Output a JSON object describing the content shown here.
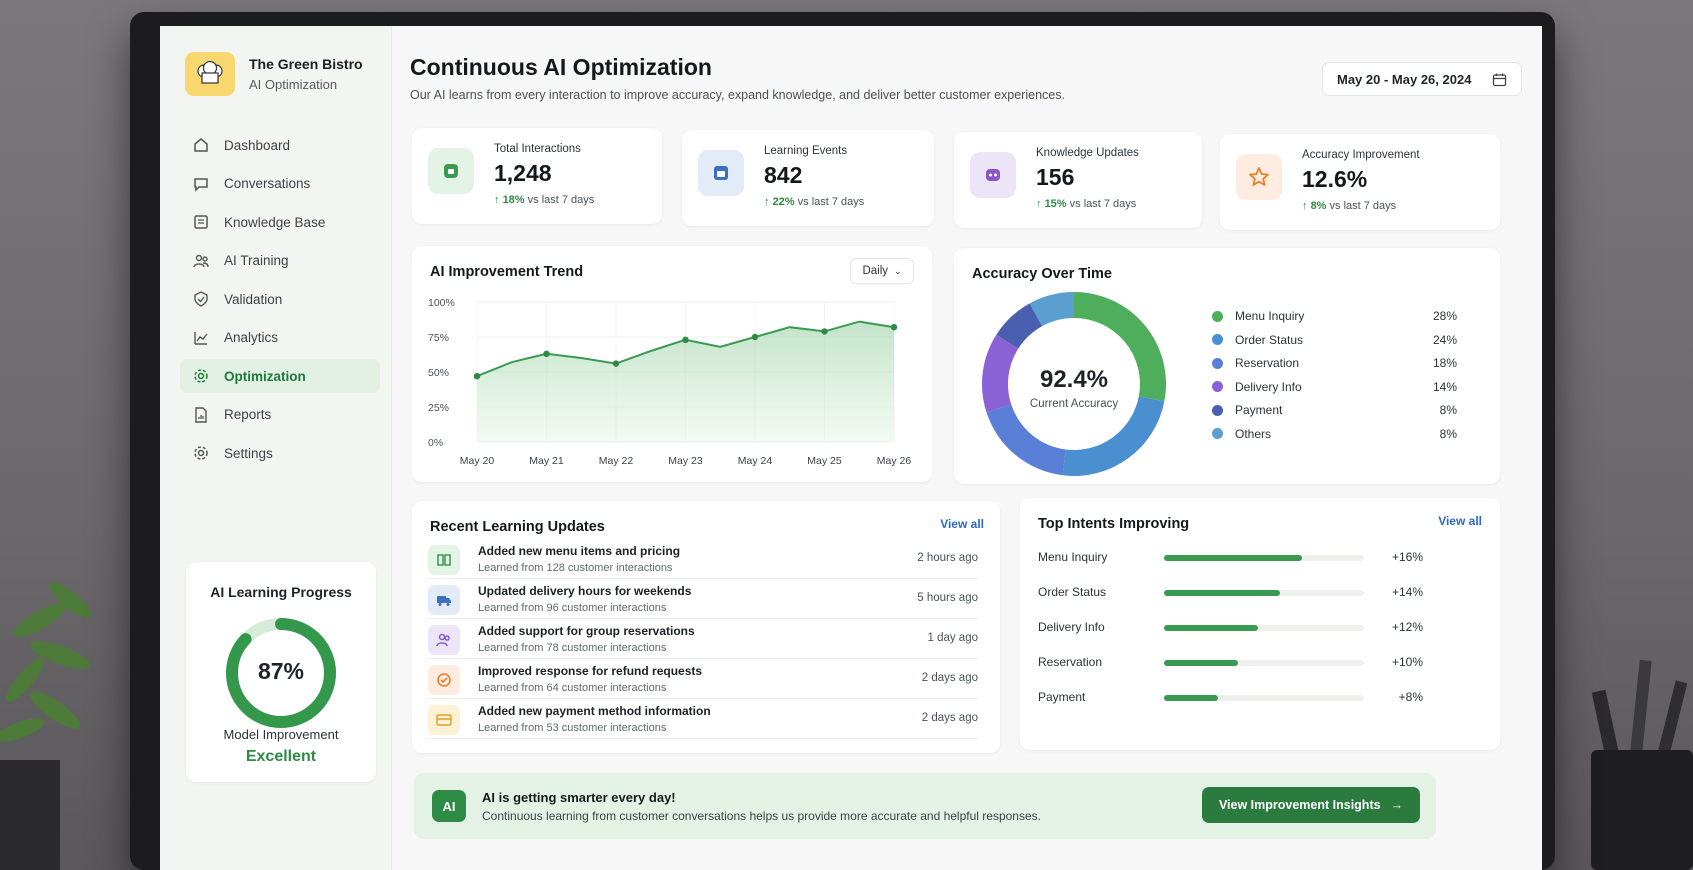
{
  "brand": {
    "name": "The Green Bistro",
    "subtitle": "AI Optimization"
  },
  "nav": [
    {
      "label": "Dashboard",
      "icon": "home-icon"
    },
    {
      "label": "Conversations",
      "icon": "chat-icon"
    },
    {
      "label": "Knowledge Base",
      "icon": "book-icon"
    },
    {
      "label": "AI Training",
      "icon": "users-icon"
    },
    {
      "label": "Validation",
      "icon": "check-shield-icon"
    },
    {
      "label": "Analytics",
      "icon": "chart-icon"
    },
    {
      "label": "Optimization",
      "icon": "gear-icon",
      "active": true
    },
    {
      "label": "Reports",
      "icon": "document-icon"
    },
    {
      "label": "Settings",
      "icon": "settings-icon"
    }
  ],
  "learning_progress": {
    "title": "AI Learning Progress",
    "percent": "87%",
    "value": 0.87,
    "label": "Model Improvement",
    "status": "Excellent"
  },
  "header": {
    "title": "Continuous AI Optimization",
    "subtitle": "Our AI learns from every interaction to improve accuracy, expand knowledge, and deliver better customer experiences.",
    "date_range": "May 20 - May 26, 2024"
  },
  "stats": [
    {
      "label": "Total Interactions",
      "value": "1,248",
      "delta": "18%",
      "delta_suffix": " vs last 7 days",
      "color": "#e3f3e6",
      "icon_color": "#3a9a51"
    },
    {
      "label": "Learning Events",
      "value": "842",
      "delta": "22%",
      "delta_suffix": " vs last 7 days",
      "color": "#e3ebf8",
      "icon_color": "#3b6fc4"
    },
    {
      "label": "Knowledge Updates",
      "value": "156",
      "delta": "15%",
      "delta_suffix": " vs last 7 days",
      "color": "#ece5f7",
      "icon_color": "#8a56c9"
    },
    {
      "label": "Accuracy Improvement",
      "value": "12.6%",
      "delta": "8%",
      "delta_suffix": " vs last 7 days",
      "color": "#fdecdf",
      "icon_color": "#e8802c"
    }
  ],
  "trend": {
    "title": "AI Improvement Trend",
    "filter": "Daily"
  },
  "chart_data": [
    {
      "type": "area",
      "title": "AI Improvement Trend",
      "x": [
        "May 20",
        "May 21",
        "May 22",
        "May 23",
        "May 24",
        "May 25",
        "May 26"
      ],
      "y_ticks": [
        "100%",
        "75%",
        "50%",
        "25%",
        "0%"
      ],
      "ylim": [
        0,
        100
      ],
      "points": [
        {
          "x": 0,
          "y": 47
        },
        {
          "x": 0.5,
          "y": 57
        },
        {
          "x": 1,
          "y": 63
        },
        {
          "x": 1.5,
          "y": 60
        },
        {
          "x": 2,
          "y": 56
        },
        {
          "x": 2.5,
          "y": 65
        },
        {
          "x": 3,
          "y": 73
        },
        {
          "x": 3.5,
          "y": 68
        },
        {
          "x": 4,
          "y": 75
        },
        {
          "x": 4.5,
          "y": 82
        },
        {
          "x": 5,
          "y": 79
        },
        {
          "x": 5.5,
          "y": 86
        },
        {
          "x": 6,
          "y": 82
        }
      ],
      "grid": true
    },
    {
      "type": "pie",
      "title": "Accuracy Over Time",
      "center_value": "92.4%",
      "center_label": "Current Accuracy",
      "slices": [
        {
          "name": "Menu Inquiry",
          "value": 28,
          "label": "28%",
          "color": "#4fae5c"
        },
        {
          "name": "Order Status",
          "value": 24,
          "label": "24%",
          "color": "#4a90d0"
        },
        {
          "name": "Reservation",
          "value": 18,
          "label": "18%",
          "color": "#5a7fd6"
        },
        {
          "name": "Delivery Info",
          "value": 14,
          "label": "14%",
          "color": "#8a62d6"
        },
        {
          "name": "Payment",
          "value": 8,
          "label": "8%",
          "color": "#4a5fb0"
        },
        {
          "name": "Others",
          "value": 8,
          "label": "8%",
          "color": "#5b9fd0"
        }
      ],
      "legend": "right"
    }
  ],
  "recent_updates": {
    "title": "Recent Learning Updates",
    "view_all": "View all",
    "items": [
      {
        "title": "Added new menu items and pricing",
        "sub": "Learned from 128 customer interactions",
        "time": "2 hours ago",
        "icon": "book-icon",
        "bg": "#e3f3e6",
        "fg": "#3a9a51"
      },
      {
        "title": "Updated delivery hours for weekends",
        "sub": "Learned from 96 customer interactions",
        "time": "5 hours ago",
        "icon": "truck-icon",
        "bg": "#e3ebf8",
        "fg": "#3b6fc4"
      },
      {
        "title": "Added support for group reservations",
        "sub": "Learned from 78 customer interactions",
        "time": "1 day ago",
        "icon": "users-icon",
        "bg": "#ece5f7",
        "fg": "#8a56c9"
      },
      {
        "title": "Improved response for refund requests",
        "sub": "Learned from 64 customer interactions",
        "time": "2 days ago",
        "icon": "refund-icon",
        "bg": "#fdecdf",
        "fg": "#e8802c"
      },
      {
        "title": "Added new payment method information",
        "sub": "Learned from 53 customer interactions",
        "time": "2 days ago",
        "icon": "card-icon",
        "bg": "#fdf1d6",
        "fg": "#e0a323"
      }
    ]
  },
  "top_intents": {
    "title": "Top Intents Improving",
    "view_all": "View all",
    "items": [
      {
        "name": "Menu Inquiry",
        "value": "+16%",
        "fill": 0.69
      },
      {
        "name": "Order Status",
        "value": "+14%",
        "fill": 0.58
      },
      {
        "name": "Delivery Info",
        "value": "+12%",
        "fill": 0.47
      },
      {
        "name": "Reservation",
        "value": "+10%",
        "fill": 0.37
      },
      {
        "name": "Payment",
        "value": "+8%",
        "fill": 0.27
      }
    ]
  },
  "banner": {
    "icon_text": "AI",
    "title": "AI is getting smarter every day!",
    "subtitle": "Continuous learning from customer conversations helps us provide more accurate and helpful responses.",
    "button": "View Improvement Insights"
  }
}
